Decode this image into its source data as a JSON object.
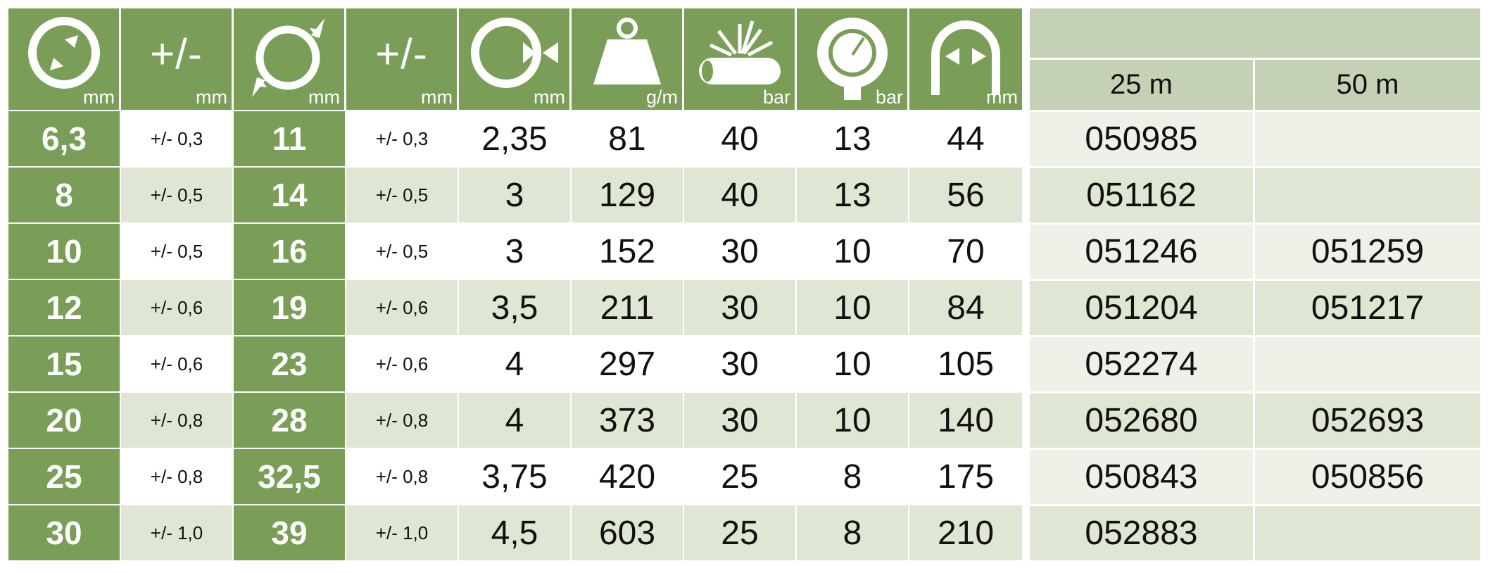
{
  "header": {
    "units": {
      "inner_diameter": "mm",
      "inner_tolerance": "mm",
      "outer_diameter": "mm",
      "outer_tolerance": "mm",
      "wall_thickness": "mm",
      "weight": "g/m",
      "burst_pressure": "bar",
      "working_pressure": "bar",
      "bend_radius": "mm"
    },
    "tolerance_symbol_1": "+/-",
    "tolerance_symbol_2": "+/-",
    "length_25": "25 m",
    "length_50": "50 m"
  },
  "rows": [
    {
      "id": "6,3",
      "id_tol": "+/- 0,3",
      "od": "11",
      "od_tol": "+/- 0,3",
      "wall": "2,35",
      "weight": "81",
      "burst": "40",
      "work": "13",
      "bend": "44",
      "art25": "050985",
      "art50": ""
    },
    {
      "id": "8",
      "id_tol": "+/- 0,5",
      "od": "14",
      "od_tol": "+/- 0,5",
      "wall": "3",
      "weight": "129",
      "burst": "40",
      "work": "13",
      "bend": "56",
      "art25": "051162",
      "art50": ""
    },
    {
      "id": "10",
      "id_tol": "+/- 0,5",
      "od": "16",
      "od_tol": "+/- 0,5",
      "wall": "3",
      "weight": "152",
      "burst": "30",
      "work": "10",
      "bend": "70",
      "art25": "051246",
      "art50": "051259"
    },
    {
      "id": "12",
      "id_tol": "+/- 0,6",
      "od": "19",
      "od_tol": "+/- 0,6",
      "wall": "3,5",
      "weight": "211",
      "burst": "30",
      "work": "10",
      "bend": "84",
      "art25": "051204",
      "art50": "051217"
    },
    {
      "id": "15",
      "id_tol": "+/- 0,6",
      "od": "23",
      "od_tol": "+/- 0,6",
      "wall": "4",
      "weight": "297",
      "burst": "30",
      "work": "10",
      "bend": "105",
      "art25": "052274",
      "art50": ""
    },
    {
      "id": "20",
      "id_tol": "+/- 0,8",
      "od": "28",
      "od_tol": "+/- 0,8",
      "wall": "4",
      "weight": "373",
      "burst": "30",
      "work": "10",
      "bend": "140",
      "art25": "052680",
      "art50": "052693"
    },
    {
      "id": "25",
      "id_tol": "+/- 0,8",
      "od": "32,5",
      "od_tol": "+/- 0,8",
      "wall": "3,75",
      "weight": "420",
      "burst": "25",
      "work": "8",
      "bend": "175",
      "art25": "050843",
      "art50": "050856"
    },
    {
      "id": "30",
      "id_tol": "+/- 1,0",
      "od": "39",
      "od_tol": "+/- 1,0",
      "wall": "4,5",
      "weight": "603",
      "burst": "25",
      "work": "8",
      "bend": "210",
      "art25": "052883",
      "art50": ""
    }
  ],
  "colors": {
    "green": "#7a9e57",
    "light": "#dfe6d3",
    "header_right": "#c5d1b5"
  }
}
